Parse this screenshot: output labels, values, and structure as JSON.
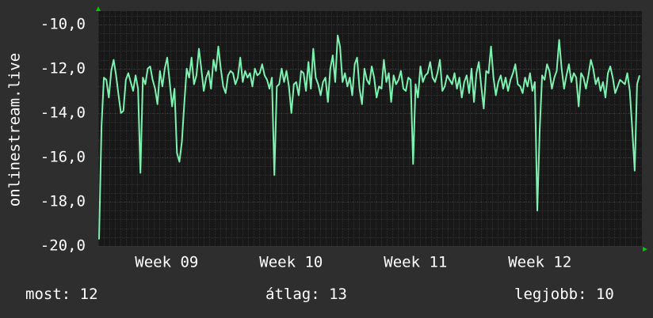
{
  "chart_data": {
    "type": "line",
    "ylabel": "onlinestream.live",
    "ylim": [
      -20,
      -9.4
    ],
    "y_ticks": [
      -10,
      -12,
      -14,
      -16,
      -18,
      -20
    ],
    "y_tick_labels": [
      "-10,0",
      "-12,0",
      "-14,0",
      "-16,0",
      "-18,0",
      "-20,0"
    ],
    "x_ticks": [
      "Week 09",
      "Week 10",
      "Week 11",
      "Week 12"
    ],
    "grid": true,
    "series": [
      {
        "color": "#7df2b0",
        "values": [
          -19.7,
          -14.6,
          -12.4,
          -12.5,
          -13.3,
          -12.1,
          -11.6,
          -12.3,
          -13.2,
          -14.0,
          -13.9,
          -12.5,
          -12.2,
          -12.6,
          -13.0,
          -12.3,
          -12.9,
          -16.7,
          -12.4,
          -12.7,
          -12.0,
          -11.9,
          -12.5,
          -12.9,
          -13.6,
          -12.1,
          -12.8,
          -12.0,
          -11.5,
          -12.6,
          -13.7,
          -12.9,
          -15.8,
          -16.2,
          -15.3,
          -13.6,
          -12.0,
          -12.4,
          -11.5,
          -12.7,
          -12.3,
          -11.1,
          -12.0,
          -13.0,
          -12.4,
          -12.1,
          -12.9,
          -11.6,
          -12.1,
          -11.0,
          -12.0,
          -12.8,
          -13.1,
          -12.3,
          -12.1,
          -12.2,
          -12.7,
          -12.4,
          -11.5,
          -12.6,
          -12.1,
          -12.4,
          -12.2,
          -12.8,
          -12.0,
          -12.3,
          -12.2,
          -11.8,
          -12.3,
          -12.5,
          -12.9,
          -12.4,
          -16.8,
          -12.8,
          -12.7,
          -12.0,
          -12.6,
          -12.1,
          -12.8,
          -14.0,
          -12.7,
          -12.6,
          -13.2,
          -12.1,
          -12.2,
          -13.0,
          -11.7,
          -12.9,
          -11.1,
          -12.4,
          -12.7,
          -13.2,
          -12.6,
          -12.4,
          -13.5,
          -12.0,
          -11.4,
          -12.6,
          -10.5,
          -11.0,
          -12.6,
          -12.2,
          -12.8,
          -12.4,
          -13.2,
          -11.8,
          -11.5,
          -12.9,
          -13.6,
          -12.0,
          -12.5,
          -12.7,
          -11.9,
          -12.4,
          -13.3,
          -12.8,
          -12.9,
          -11.6,
          -12.6,
          -12.2,
          -13.5,
          -12.3,
          -12.7,
          -12.5,
          -12.1,
          -12.9,
          -13.0,
          -12.4,
          -12.5,
          -16.3,
          -12.7,
          -13.3,
          -11.9,
          -12.6,
          -12.3,
          -12.2,
          -11.7,
          -12.4,
          -12.6,
          -12.2,
          -11.6,
          -13.0,
          -12.8,
          -12.3,
          -12.5,
          -12.7,
          -12.2,
          -12.9,
          -12.4,
          -13.3,
          -12.6,
          -12.3,
          -13.1,
          -12.0,
          -13.5,
          -12.2,
          -11.7,
          -12.8,
          -13.8,
          -12.1,
          -12.2,
          -11.0,
          -12.4,
          -13.2,
          -12.6,
          -12.3,
          -12.9,
          -12.4,
          -13.0,
          -12.5,
          -12.2,
          -11.8,
          -12.7,
          -12.8,
          -13.1,
          -12.4,
          -12.8,
          -12.2,
          -13.0,
          -12.6,
          -18.4,
          -14.8,
          -12.3,
          -12.5,
          -11.8,
          -12.1,
          -12.9,
          -12.4,
          -12.1,
          -10.7,
          -12.0,
          -12.9,
          -12.3,
          -11.8,
          -12.6,
          -12.2,
          -12.4,
          -13.7,
          -12.2,
          -12.4,
          -12.9,
          -12.3,
          -11.6,
          -12.0,
          -12.7,
          -12.4,
          -13.0,
          -12.6,
          -13.3,
          -12.2,
          -11.9,
          -12.4,
          -13.1,
          -12.8,
          -12.5,
          -12.6,
          -12.7,
          -12.2,
          -13.0,
          -14.7,
          -16.6,
          -12.7,
          -12.3
        ]
      }
    ]
  },
  "legend": {
    "current_label": "most: 12",
    "average_label": "átlag: 13",
    "best_label": "legjobb: 10"
  },
  "colors": {
    "background": "#2e2e2e",
    "plot_area": "#181818",
    "major_grid": "#5a2f2f",
    "minor_grid": "#2f2f2f",
    "axis_arrow": "#00cc00",
    "text": "#ffffff",
    "series": "#7df2b0"
  }
}
